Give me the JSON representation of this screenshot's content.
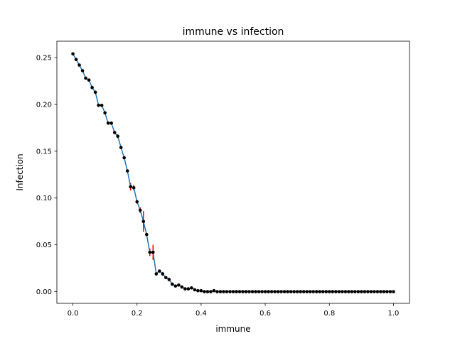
{
  "chart_data": {
    "type": "line",
    "title": "immune vs infection",
    "xlabel": "immune",
    "ylabel": "Infection",
    "xlim": [
      -0.05,
      1.05
    ],
    "ylim": [
      -0.0125,
      0.2675
    ],
    "xticks": [
      0.0,
      0.2,
      0.4,
      0.6,
      0.8,
      1.0
    ],
    "xtick_labels": [
      "0.0",
      "0.2",
      "0.4",
      "0.6",
      "0.8",
      "1.0"
    ],
    "yticks": [
      0.0,
      0.05,
      0.1,
      0.15,
      0.2,
      0.25
    ],
    "ytick_labels": [
      "0.00",
      "0.05",
      "0.10",
      "0.15",
      "0.20",
      "0.25"
    ],
    "grid": false,
    "series": [
      {
        "color": "#1f77b4",
        "marker_color": "#000000",
        "error_color": "#ff0000",
        "x": [
          0.0,
          0.01,
          0.02,
          0.03,
          0.04,
          0.05,
          0.06,
          0.07,
          0.08,
          0.09,
          0.1,
          0.11,
          0.12,
          0.13,
          0.14,
          0.15,
          0.16,
          0.17,
          0.18,
          0.19,
          0.2,
          0.21,
          0.22,
          0.23,
          0.24,
          0.25,
          0.26,
          0.27,
          0.28,
          0.29,
          0.3,
          0.31,
          0.32,
          0.33,
          0.34,
          0.35,
          0.36,
          0.37,
          0.38,
          0.39,
          0.4,
          0.41,
          0.42,
          0.43,
          0.44,
          0.45,
          0.46,
          0.47,
          0.48,
          0.49,
          0.5,
          0.51,
          0.52,
          0.53,
          0.54,
          0.55,
          0.56,
          0.57,
          0.58,
          0.59,
          0.6,
          0.61,
          0.62,
          0.63,
          0.64,
          0.65,
          0.66,
          0.67,
          0.68,
          0.69,
          0.7,
          0.71,
          0.72,
          0.73,
          0.74,
          0.75,
          0.76,
          0.77,
          0.78,
          0.79,
          0.8,
          0.81,
          0.82,
          0.83,
          0.84,
          0.85,
          0.86,
          0.87,
          0.88,
          0.89,
          0.9,
          0.91,
          0.92,
          0.93,
          0.94,
          0.95,
          0.96,
          0.97,
          0.98,
          0.99,
          1.0
        ],
        "y": [
          0.254,
          0.248,
          0.242,
          0.236,
          0.228,
          0.226,
          0.218,
          0.213,
          0.199,
          0.199,
          0.191,
          0.18,
          0.18,
          0.17,
          0.166,
          0.154,
          0.143,
          0.129,
          0.112,
          0.111,
          0.096,
          0.087,
          0.075,
          0.061,
          0.042,
          0.042,
          0.019,
          0.022,
          0.019,
          0.015,
          0.013,
          0.008,
          0.006,
          0.007,
          0.005,
          0.003,
          0.003,
          0.004,
          0.002,
          0.001,
          0.001,
          0.0,
          0.0,
          0.0,
          0.001,
          0.0,
          0.0,
          0.0,
          0.0,
          0.0,
          0.0,
          0.0,
          0.0,
          0.0,
          0.0,
          0.0,
          0.0,
          0.0,
          0.0,
          0.0,
          0.0,
          0.0,
          0.0,
          0.0,
          0.0,
          0.0,
          0.0,
          0.0,
          0.0,
          0.0,
          0.0,
          0.0,
          0.0,
          0.0,
          0.0,
          0.0,
          0.0,
          0.0,
          0.0,
          0.0,
          0.0,
          0.0,
          0.0,
          0.0,
          0.0,
          0.0,
          0.0,
          0.0,
          0.0,
          0.0,
          0.0,
          0.0,
          0.0,
          0.0,
          0.0,
          0.0,
          0.0,
          0.0,
          0.0,
          0.0,
          0.0
        ],
        "yerr": [
          0.001,
          0.001,
          0.001,
          0.001,
          0.001,
          0.001,
          0.001,
          0.001,
          0.001,
          0.001,
          0.001,
          0.001,
          0.001,
          0.002,
          0.002,
          0.001,
          0.001,
          0.001,
          0.004,
          0.003,
          0.002,
          0.003,
          0.011,
          0.002,
          0.004,
          0.008,
          0.002,
          0.001,
          0.002,
          0.001,
          0.002,
          0.001,
          0.001,
          0.001,
          0.001,
          0.001,
          0.001,
          0.001,
          0.001,
          0.0,
          0.0,
          0.0,
          0.0,
          0.0,
          0.0,
          0.0,
          0.0,
          0.0,
          0.0,
          0.0,
          0.0,
          0.0,
          0.0,
          0.0,
          0.0,
          0.0,
          0.0,
          0.0,
          0.0,
          0.0,
          0.0,
          0.0,
          0.0,
          0.0,
          0.0,
          0.0,
          0.0,
          0.0,
          0.0,
          0.0,
          0.0,
          0.0,
          0.0,
          0.0,
          0.0,
          0.0,
          0.0,
          0.0,
          0.0,
          0.0,
          0.0,
          0.0,
          0.0,
          0.0,
          0.0,
          0.0,
          0.0,
          0.0,
          0.0,
          0.0,
          0.0,
          0.0,
          0.0,
          0.0,
          0.0,
          0.0,
          0.0,
          0.0,
          0.0,
          0.0,
          0.0
        ]
      }
    ]
  }
}
